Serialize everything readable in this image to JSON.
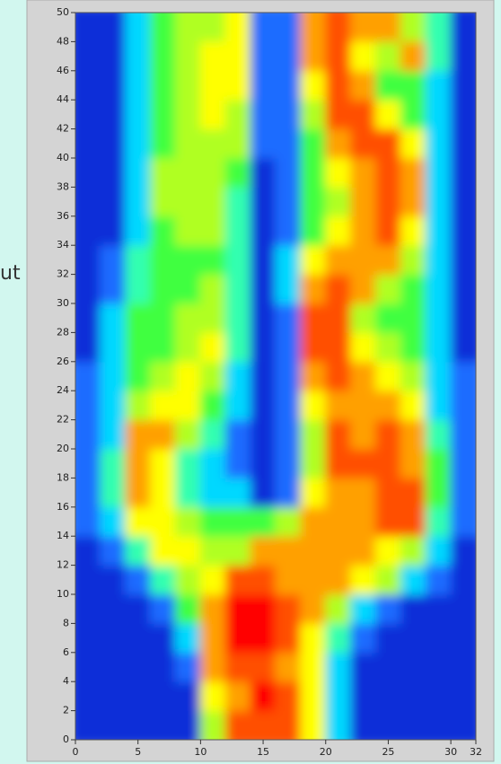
{
  "side_text": "ut",
  "chart_data": {
    "type": "heatmap",
    "xlim": [
      0,
      32
    ],
    "ylim": [
      0,
      50
    ],
    "xticks": [
      0,
      5,
      10,
      15,
      20,
      25,
      30,
      32
    ],
    "yticks": [
      0,
      2,
      4,
      6,
      8,
      10,
      12,
      14,
      16,
      18,
      20,
      22,
      24,
      26,
      28,
      30,
      32,
      34,
      36,
      38,
      40,
      42,
      44,
      46,
      48,
      50
    ],
    "colors": [
      "#001a9c",
      "#0a2fd8",
      "#1a6cff",
      "#00d8ff",
      "#30ffb0",
      "#40ff40",
      "#b0ff20",
      "#ffff00",
      "#ffa000",
      "#ff5000",
      "#ff0000"
    ],
    "z": [
      [
        1,
        1,
        1,
        1,
        1,
        6,
        9,
        9,
        9,
        7,
        3,
        1,
        1,
        1,
        1,
        1
      ],
      [
        1,
        1,
        1,
        1,
        1,
        7,
        8,
        10,
        9,
        7,
        3,
        1,
        1,
        1,
        1,
        1
      ],
      [
        1,
        1,
        1,
        1,
        2,
        8,
        9,
        9,
        8,
        7,
        3,
        1,
        1,
        1,
        1,
        1
      ],
      [
        1,
        1,
        1,
        1,
        3,
        8,
        10,
        10,
        9,
        7,
        4,
        2,
        1,
        1,
        1,
        1
      ],
      [
        1,
        1,
        1,
        2,
        5,
        8,
        10,
        10,
        9,
        8,
        6,
        3,
        2,
        1,
        1,
        1
      ],
      [
        1,
        1,
        2,
        4,
        6,
        7,
        9,
        9,
        8,
        8,
        8,
        7,
        6,
        3,
        2,
        1
      ],
      [
        1,
        2,
        4,
        7,
        7,
        6,
        6,
        8,
        8,
        8,
        8,
        8,
        7,
        6,
        3,
        1
      ],
      [
        2,
        3,
        7,
        7,
        6,
        5,
        5,
        5,
        6,
        8,
        8,
        8,
        9,
        9,
        4,
        2
      ],
      [
        2,
        4,
        8,
        7,
        4,
        3,
        3,
        1,
        2,
        7,
        8,
        8,
        9,
        9,
        5,
        2
      ],
      [
        2,
        4,
        8,
        7,
        4,
        3,
        2,
        1,
        2,
        6,
        9,
        9,
        9,
        8,
        5,
        2
      ],
      [
        2,
        3,
        8,
        8,
        6,
        4,
        2,
        1,
        2,
        6,
        9,
        8,
        9,
        8,
        4,
        2
      ],
      [
        2,
        3,
        6,
        7,
        7,
        5,
        3,
        1,
        2,
        7,
        8,
        8,
        8,
        7,
        3,
        2
      ],
      [
        2,
        3,
        5,
        6,
        7,
        6,
        3,
        1,
        2,
        8,
        9,
        8,
        7,
        6,
        3,
        2
      ],
      [
        1,
        3,
        5,
        5,
        6,
        7,
        4,
        1,
        2,
        9,
        9,
        7,
        6,
        5,
        3,
        1
      ],
      [
        1,
        3,
        5,
        5,
        6,
        6,
        4,
        1,
        2,
        9,
        9,
        6,
        5,
        5,
        3,
        1
      ],
      [
        1,
        2,
        4,
        5,
        5,
        6,
        4,
        1,
        3,
        8,
        9,
        8,
        6,
        5,
        3,
        1
      ],
      [
        1,
        2,
        4,
        5,
        5,
        5,
        4,
        1,
        3,
        7,
        8,
        8,
        8,
        6,
        3,
        1
      ],
      [
        1,
        1,
        3,
        5,
        6,
        6,
        4,
        1,
        2,
        5,
        7,
        8,
        9,
        7,
        3,
        1
      ],
      [
        1,
        1,
        3,
        6,
        6,
        6,
        4,
        1,
        2,
        5,
        6,
        8,
        9,
        8,
        3,
        1
      ],
      [
        1,
        1,
        3,
        6,
        6,
        6,
        5,
        1,
        2,
        5,
        7,
        8,
        9,
        8,
        3,
        1
      ],
      [
        1,
        1,
        3,
        5,
        6,
        6,
        6,
        2,
        2,
        5,
        8,
        9,
        9,
        7,
        3,
        1
      ],
      [
        1,
        1,
        3,
        5,
        6,
        7,
        6,
        2,
        2,
        6,
        9,
        9,
        7,
        5,
        3,
        1
      ],
      [
        1,
        1,
        3,
        5,
        6,
        7,
        7,
        2,
        2,
        7,
        9,
        8,
        5,
        5,
        3,
        1
      ],
      [
        1,
        1,
        3,
        5,
        6,
        7,
        7,
        2,
        2,
        8,
        9,
        7,
        6,
        8,
        4,
        1
      ],
      [
        1,
        1,
        3,
        5,
        6,
        6,
        7,
        2,
        2,
        8,
        9,
        8,
        8,
        6,
        4,
        1
      ]
    ]
  }
}
